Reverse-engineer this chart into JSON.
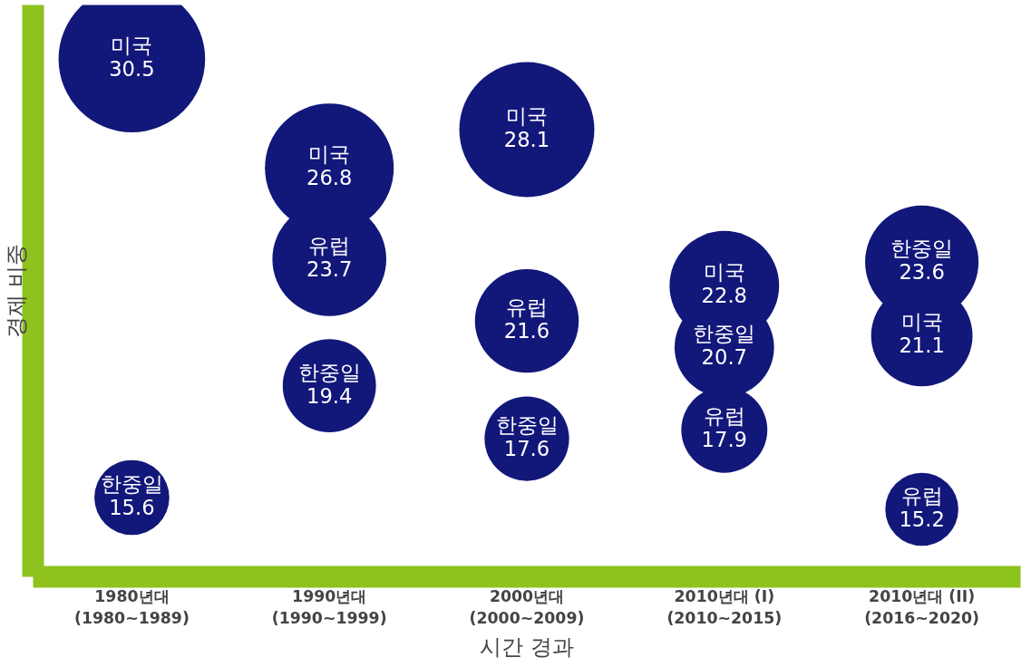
{
  "chart_data": {
    "type": "other",
    "xlabel": "시간 경과",
    "ylabel": "경제 비중",
    "categories": [
      "1980년대\n(1980~1989)",
      "1990년대\n(1990~1999)",
      "2000년대\n(2000~2009)",
      "2010년대 (I)\n(2010~2015)",
      "2010년대 (II)\n(2016~2020)"
    ],
    "series": [
      {
        "name": "미국",
        "color": "#12177a",
        "values": [
          30.5,
          26.8,
          28.1,
          22.8,
          21.1
        ]
      },
      {
        "name": "유럽",
        "color": "#12177a",
        "values": [
          null,
          23.7,
          21.6,
          17.9,
          15.2
        ]
      },
      {
        "name": "한중일",
        "color": "#12177a",
        "values": [
          15.6,
          19.4,
          17.6,
          20.7,
          23.6
        ]
      }
    ],
    "data_labels": true
  }
}
